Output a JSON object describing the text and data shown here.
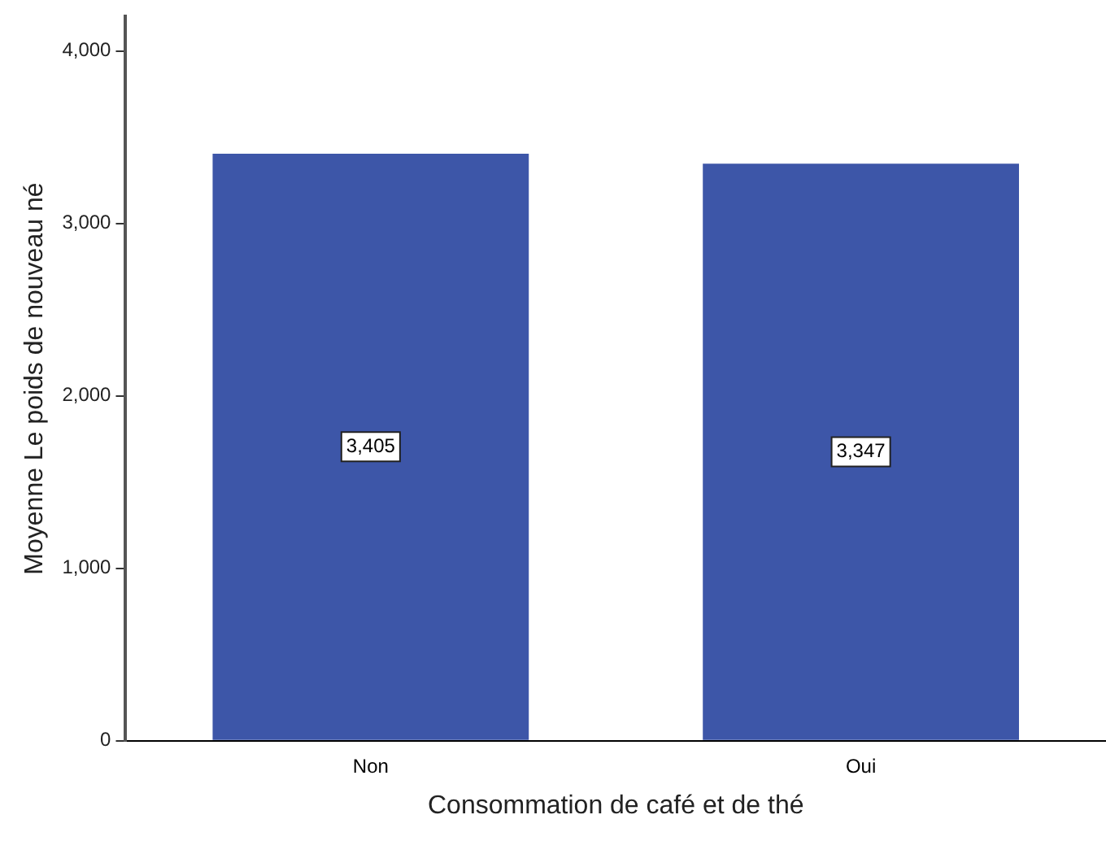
{
  "chart_data": {
    "type": "bar",
    "xlabel": "Consommation de café et de thé",
    "ylabel": "Moyenne Le poids de nouveau né",
    "categories": [
      "Non",
      "Oui"
    ],
    "values": [
      3405,
      3347
    ],
    "value_labels": [
      "3,405",
      "3,347"
    ],
    "color": "#3d56a8",
    "ylim": [
      0,
      4200
    ],
    "yticks": [
      0,
      {
        "value": 1000,
        "label": "1,000"
      },
      {
        "value": 2000,
        "label": "2,000"
      },
      {
        "value": 3000,
        "label": "3,000"
      },
      {
        "value": 4000,
        "label": "4,000"
      }
    ],
    "grid": false,
    "legend": false
  }
}
